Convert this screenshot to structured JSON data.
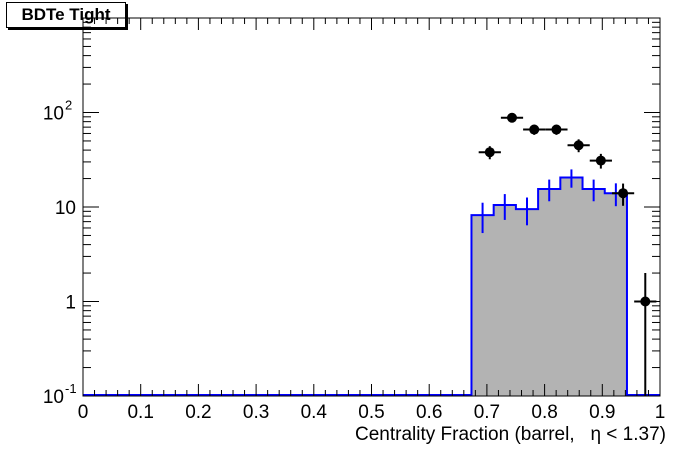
{
  "title": "BDTe Tight",
  "chart_data": {
    "type": "bar",
    "title": "BDTe Tight",
    "xlabel": "Centrality Fraction (barrel,   η < 1.37)",
    "ylabel": "",
    "xlim": [
      0,
      1
    ],
    "ylim": [
      0.1,
      1000
    ],
    "yscale": "log",
    "grid": false,
    "x_ticks": [
      "0",
      "0.1",
      "0.2",
      "0.3",
      "0.4",
      "0.5",
      "0.6",
      "0.7",
      "0.8",
      "0.9",
      "1"
    ],
    "y_ticks": [
      {
        "value": 0.1,
        "label": "10",
        "exp": "-1"
      },
      {
        "value": 1,
        "label": "1",
        "exp": ""
      },
      {
        "value": 10,
        "label": "10",
        "exp": ""
      },
      {
        "value": 100,
        "label": "10",
        "exp": "2"
      }
    ],
    "series": [
      {
        "kind": "histogram",
        "fill": "#b3b3b3",
        "line": "#0000ff",
        "bin_width": 0.0385,
        "bins": [
          {
            "x": 0.6925,
            "y": 8.2,
            "err": 2.9
          },
          {
            "x": 0.731,
            "y": 10.5,
            "err": 3.2
          },
          {
            "x": 0.7695,
            "y": 9.5,
            "err": 3.1
          },
          {
            "x": 0.808,
            "y": 15.5,
            "err": 4.0
          },
          {
            "x": 0.8465,
            "y": 20.5,
            "err": 4.5
          },
          {
            "x": 0.885,
            "y": 15.5,
            "err": 4.0
          },
          {
            "x": 0.9235,
            "y": 14.0,
            "err": 3.8
          }
        ]
      },
      {
        "kind": "points",
        "color": "#000000",
        "points": [
          {
            "x": 0.705,
            "y": 38,
            "err": 6
          },
          {
            "x": 0.7435,
            "y": 88,
            "err": 9
          },
          {
            "x": 0.782,
            "y": 66,
            "err": 8
          },
          {
            "x": 0.8205,
            "y": 66,
            "err": 8
          },
          {
            "x": 0.859,
            "y": 45,
            "err": 7
          },
          {
            "x": 0.8975,
            "y": 31,
            "err": 5.5
          },
          {
            "x": 0.936,
            "y": 14,
            "err": 3.7
          },
          {
            "x": 0.9745,
            "y": 1,
            "err": 1
          }
        ]
      }
    ]
  }
}
